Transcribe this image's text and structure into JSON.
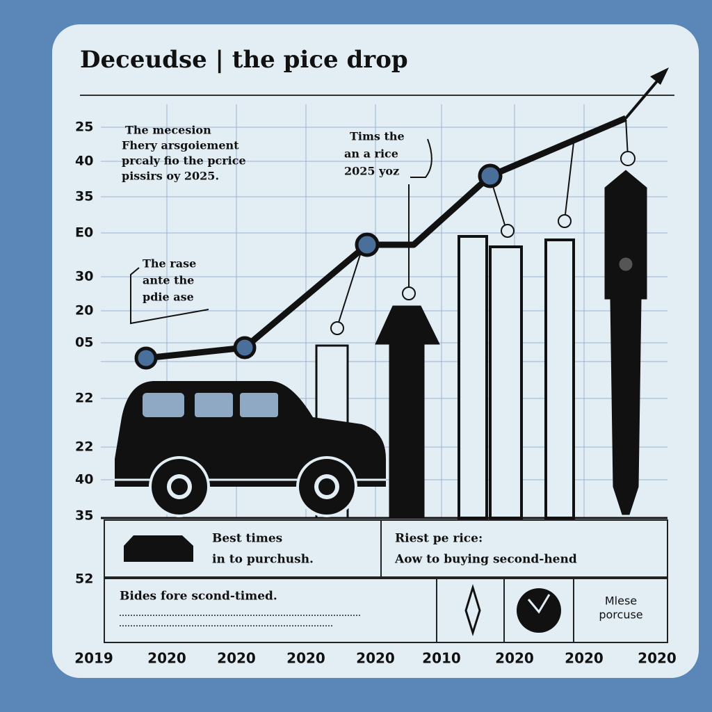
{
  "header": {
    "title": "Deceudse | the pice drop"
  },
  "y_labels": [
    "25",
    "40",
    "35",
    "E0",
    "30",
    "20",
    "05",
    "22",
    "22",
    "40",
    "35",
    "52"
  ],
  "x_labels": [
    "2019",
    "2020",
    "2020",
    "2020",
    "2020",
    "2010",
    "2020",
    "2020",
    "2020"
  ],
  "annotations": [
    {
      "lines": [
        "The mecesion",
        "Fhery arsgoiement",
        "prcaly fio the pcrice",
        "pissirs oy 2025."
      ]
    },
    {
      "lines": [
        "Tims the",
        "an a rice",
        "2025 yoz"
      ]
    },
    {
      "lines": [
        "The rase",
        "ante the",
        "pdie ase"
      ]
    }
  ],
  "panels": [
    {
      "lines": [
        "Best times",
        "in to purchush."
      ]
    },
    {
      "lines": [
        "Riest pe rice:",
        "Aow to buying second-hend"
      ]
    },
    {
      "lines": [
        "Bides fore scond-timed."
      ]
    },
    {
      "lines": [
        "Mlese",
        "porcuse"
      ]
    }
  ]
}
